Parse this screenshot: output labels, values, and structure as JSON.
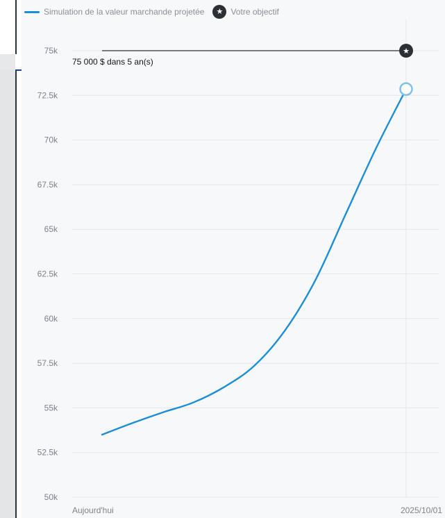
{
  "legend": {
    "series_label": "Simulation de la valeur marchande projetée",
    "goal_label": "Votre objectif",
    "goal_icon": "star-icon"
  },
  "colors": {
    "series": "#1a8fd8",
    "goal": "#2b2f36",
    "grid": "#e3e6ea",
    "panel": "#f7f8fa"
  },
  "chart_data": {
    "type": "line",
    "ylim": [
      50000,
      75000
    ],
    "yticks": [
      {
        "value": 75000,
        "label": "75k"
      },
      {
        "value": 72500,
        "label": "72.5k"
      },
      {
        "value": 70000,
        "label": "70k"
      },
      {
        "value": 67500,
        "label": "67.5k"
      },
      {
        "value": 65000,
        "label": "65k"
      },
      {
        "value": 62500,
        "label": "62.5k"
      },
      {
        "value": 60000,
        "label": "60k"
      },
      {
        "value": 57500,
        "label": "57.5k"
      },
      {
        "value": 55000,
        "label": "55k"
      },
      {
        "value": 52500,
        "label": "52.5k"
      },
      {
        "value": 50000,
        "label": "50k"
      }
    ],
    "xticks": [
      {
        "t": 0,
        "label": "Aujourd'hui"
      },
      {
        "t": 1,
        "label": "2025/10/01"
      }
    ],
    "series": [
      {
        "points": [
          {
            "t": 0.0,
            "y": 53500
          },
          {
            "t": 0.1,
            "y": 54150
          },
          {
            "t": 0.2,
            "y": 54750
          },
          {
            "t": 0.3,
            "y": 55300
          },
          {
            "t": 0.4,
            "y": 56150
          },
          {
            "t": 0.5,
            "y": 57350
          },
          {
            "t": 0.6,
            "y": 59300
          },
          {
            "t": 0.7,
            "y": 62100
          },
          {
            "t": 0.8,
            "y": 65800
          },
          {
            "t": 0.9,
            "y": 69500
          },
          {
            "t": 1.0,
            "y": 72850
          }
        ]
      }
    ],
    "goal": {
      "value": 75000,
      "label": "75 000 $ dans 5 an(s)"
    }
  }
}
